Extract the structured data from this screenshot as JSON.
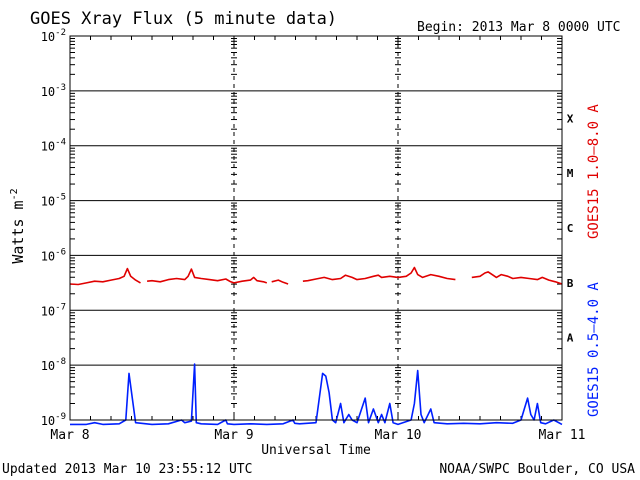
{
  "chart_data": {
    "type": "line",
    "title": "GOES Xray Flux (5 minute data)",
    "begin_label": "Begin:  2013 Mar 8 0000 UTC",
    "xlabel": "Universal Time",
    "ylabel_main": "Watts m",
    "ylabel_exponent": "-2",
    "x_range_days": [
      0,
      3
    ],
    "x_ticks": [
      {
        "day": 0,
        "label": "Mar 8"
      },
      {
        "day": 1,
        "label": "Mar 9"
      },
      {
        "day": 2,
        "label": "Mar 10"
      },
      {
        "day": 3,
        "label": "Mar 11"
      }
    ],
    "y_scale": "log",
    "y_range_exp": [
      -9,
      -2
    ],
    "y_ticks": [
      {
        "exp": -2,
        "base": "10",
        "sup": "-2"
      },
      {
        "exp": -3,
        "base": "10",
        "sup": "-3"
      },
      {
        "exp": -4,
        "base": "10",
        "sup": "-4"
      },
      {
        "exp": -5,
        "base": "10",
        "sup": "-5"
      },
      {
        "exp": -6,
        "base": "10",
        "sup": "-6"
      },
      {
        "exp": -7,
        "base": "10",
        "sup": "-7"
      },
      {
        "exp": -8,
        "base": "10",
        "sup": "-8"
      },
      {
        "exp": -9,
        "base": "10",
        "sup": "-9"
      }
    ],
    "flare_classes": [
      {
        "label": "X",
        "exp": -3.5
      },
      {
        "label": "M",
        "exp": -4.5
      },
      {
        "label": "C",
        "exp": -5.5
      },
      {
        "label": "B",
        "exp": -6.5
      },
      {
        "label": "A",
        "exp": -7.5
      }
    ],
    "grid": true,
    "series": [
      {
        "name": "GOES15 1.0–8.0 A",
        "color": "#e00000",
        "segments": [
          [
            [
              0.0,
              -6.52
            ],
            [
              0.05,
              -6.53
            ],
            [
              0.1,
              -6.5
            ],
            [
              0.15,
              -6.47
            ],
            [
              0.2,
              -6.48
            ],
            [
              0.25,
              -6.45
            ],
            [
              0.3,
              -6.42
            ],
            [
              0.33,
              -6.38
            ],
            [
              0.35,
              -6.24
            ],
            [
              0.37,
              -6.38
            ],
            [
              0.4,
              -6.45
            ],
            [
              0.43,
              -6.5
            ]
          ],
          [
            [
              0.47,
              -6.47
            ],
            [
              0.5,
              -6.46
            ],
            [
              0.55,
              -6.48
            ],
            [
              0.6,
              -6.44
            ],
            [
              0.65,
              -6.42
            ],
            [
              0.7,
              -6.44
            ],
            [
              0.72,
              -6.38
            ],
            [
              0.74,
              -6.25
            ],
            [
              0.76,
              -6.4
            ],
            [
              0.8,
              -6.42
            ],
            [
              0.85,
              -6.44
            ],
            [
              0.9,
              -6.46
            ],
            [
              0.95,
              -6.43
            ],
            [
              0.98,
              -6.48
            ],
            [
              1.0,
              -6.5
            ],
            [
              1.05,
              -6.47
            ],
            [
              1.1,
              -6.45
            ],
            [
              1.12,
              -6.4
            ],
            [
              1.14,
              -6.46
            ],
            [
              1.18,
              -6.48
            ],
            [
              1.2,
              -6.5
            ]
          ],
          [
            [
              1.23,
              -6.48
            ],
            [
              1.27,
              -6.45
            ],
            [
              1.3,
              -6.49
            ],
            [
              1.33,
              -6.52
            ]
          ],
          [
            [
              1.42,
              -6.47
            ],
            [
              1.45,
              -6.46
            ],
            [
              1.5,
              -6.43
            ],
            [
              1.55,
              -6.4
            ],
            [
              1.6,
              -6.44
            ],
            [
              1.65,
              -6.42
            ],
            [
              1.68,
              -6.36
            ],
            [
              1.72,
              -6.4
            ],
            [
              1.75,
              -6.44
            ],
            [
              1.8,
              -6.42
            ],
            [
              1.85,
              -6.38
            ],
            [
              1.88,
              -6.36
            ],
            [
              1.9,
              -6.4
            ],
            [
              1.95,
              -6.38
            ],
            [
              2.0,
              -6.4
            ],
            [
              2.05,
              -6.38
            ],
            [
              2.08,
              -6.32
            ],
            [
              2.1,
              -6.22
            ],
            [
              2.12,
              -6.35
            ],
            [
              2.15,
              -6.4
            ],
            [
              2.2,
              -6.35
            ],
            [
              2.25,
              -6.38
            ],
            [
              2.3,
              -6.42
            ],
            [
              2.35,
              -6.44
            ]
          ],
          [
            [
              2.45,
              -6.4
            ],
            [
              2.5,
              -6.38
            ],
            [
              2.53,
              -6.32
            ],
            [
              2.55,
              -6.3
            ],
            [
              2.58,
              -6.36
            ],
            [
              2.6,
              -6.4
            ],
            [
              2.63,
              -6.35
            ],
            [
              2.67,
              -6.38
            ],
            [
              2.7,
              -6.42
            ],
            [
              2.75,
              -6.4
            ],
            [
              2.8,
              -6.42
            ],
            [
              2.85,
              -6.44
            ],
            [
              2.88,
              -6.4
            ],
            [
              2.92,
              -6.45
            ],
            [
              2.96,
              -6.48
            ],
            [
              3.0,
              -6.52
            ]
          ]
        ]
      },
      {
        "name": "GOES15 0.5–4.0 A",
        "color": "#0020ff",
        "segments": [
          [
            [
              0.0,
              -9.08
            ],
            [
              0.1,
              -9.08
            ],
            [
              0.15,
              -9.05
            ],
            [
              0.2,
              -9.08
            ],
            [
              0.3,
              -9.07
            ],
            [
              0.34,
              -9.0
            ],
            [
              0.36,
              -8.15
            ],
            [
              0.38,
              -8.6
            ],
            [
              0.4,
              -9.05
            ],
            [
              0.5,
              -9.08
            ],
            [
              0.6,
              -9.07
            ],
            [
              0.68,
              -9.0
            ],
            [
              0.7,
              -9.05
            ],
            [
              0.74,
              -9.02
            ],
            [
              0.76,
              -7.98
            ],
            [
              0.77,
              -9.05
            ],
            [
              0.8,
              -9.07
            ],
            [
              0.9,
              -9.08
            ],
            [
              0.95,
              -9.0
            ],
            [
              0.96,
              -9.07
            ],
            [
              1.0,
              -9.08
            ],
            [
              1.1,
              -9.07
            ],
            [
              1.2,
              -9.08
            ],
            [
              1.3,
              -9.07
            ],
            [
              1.36,
              -9.0
            ],
            [
              1.37,
              -9.06
            ],
            [
              1.4,
              -9.07
            ],
            [
              1.5,
              -9.05
            ],
            [
              1.52,
              -8.6
            ],
            [
              1.54,
              -8.15
            ],
            [
              1.56,
              -8.2
            ],
            [
              1.58,
              -8.5
            ],
            [
              1.6,
              -9.0
            ],
            [
              1.62,
              -9.05
            ],
            [
              1.65,
              -8.7
            ],
            [
              1.67,
              -9.05
            ],
            [
              1.7,
              -8.9
            ],
            [
              1.72,
              -9.0
            ],
            [
              1.75,
              -9.05
            ],
            [
              1.8,
              -8.6
            ],
            [
              1.82,
              -9.05
            ],
            [
              1.85,
              -8.8
            ],
            [
              1.88,
              -9.05
            ],
            [
              1.9,
              -8.9
            ],
            [
              1.92,
              -9.05
            ],
            [
              1.95,
              -8.7
            ],
            [
              1.97,
              -9.05
            ],
            [
              2.0,
              -9.08
            ],
            [
              2.08,
              -9.0
            ],
            [
              2.1,
              -8.7
            ],
            [
              2.12,
              -8.1
            ],
            [
              2.14,
              -8.9
            ],
            [
              2.16,
              -9.05
            ],
            [
              2.2,
              -8.8
            ],
            [
              2.22,
              -9.05
            ],
            [
              2.3,
              -9.07
            ],
            [
              2.4,
              -9.06
            ],
            [
              2.5,
              -9.07
            ],
            [
              2.6,
              -9.05
            ],
            [
              2.7,
              -9.06
            ],
            [
              2.75,
              -9.0
            ],
            [
              2.77,
              -8.8
            ],
            [
              2.79,
              -8.6
            ],
            [
              2.81,
              -8.9
            ],
            [
              2.83,
              -9.0
            ],
            [
              2.85,
              -8.7
            ],
            [
              2.87,
              -9.05
            ],
            [
              2.9,
              -9.07
            ],
            [
              2.95,
              -9.0
            ],
            [
              3.0,
              -9.08
            ]
          ]
        ]
      }
    ]
  },
  "footer": {
    "updated": "Updated 2013 Mar 10 23:55:12 UTC",
    "credit": "NOAA/SWPC Boulder, CO USA"
  }
}
